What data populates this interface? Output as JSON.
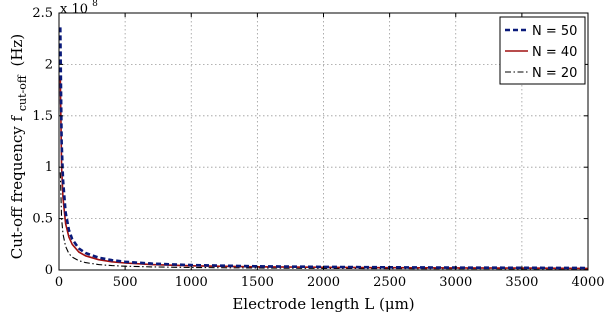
{
  "chart_data": {
    "type": "line",
    "title": "",
    "xlabel": "Electrode length L (μm)",
    "ylabel_main": "Cut-off frequency f",
    "ylabel_sub": "cut-off",
    "ylabel_unit": "(Hz)",
    "y_multiplier_base": "x 10",
    "y_multiplier_exp": "8",
    "xlim": [
      0,
      4000
    ],
    "ylim": [
      0,
      2.5
    ],
    "xticks": [
      0,
      500,
      1000,
      1500,
      2000,
      2500,
      3000,
      3500,
      4000
    ],
    "xtick_labels": [
      "0",
      "500",
      "1000",
      "1500",
      "2000",
      "2500",
      "3000",
      "3500",
      "4000"
    ],
    "yticks": [
      0,
      0.5,
      1,
      1.5,
      2,
      2.5
    ],
    "ytick_labels": [
      "0",
      "0.5",
      "1",
      "1.5",
      "2",
      "2.5"
    ],
    "grid": true,
    "legend_position": "top-right",
    "series": [
      {
        "name": "N = 50",
        "color": "#0a1a7a",
        "style": "dashed",
        "x": [
          10,
          20,
          30,
          50,
          75,
          100,
          150,
          200,
          300,
          400,
          500,
          700,
          1000,
          1500,
          2000,
          2500,
          3000,
          3500,
          4000
        ],
        "y": [
          2.36,
          1.25,
          0.88,
          0.56,
          0.39,
          0.3,
          0.21,
          0.165,
          0.12,
          0.095,
          0.08,
          0.062,
          0.048,
          0.036,
          0.03,
          0.026,
          0.023,
          0.021,
          0.019
        ]
      },
      {
        "name": "N = 40",
        "color": "#a01010",
        "style": "solid",
        "x": [
          10,
          20,
          30,
          50,
          75,
          100,
          150,
          200,
          300,
          400,
          500,
          700,
          1000,
          1500,
          2000,
          2500,
          3000,
          3500,
          4000
        ],
        "y": [
          1.88,
          1.0,
          0.7,
          0.45,
          0.32,
          0.25,
          0.175,
          0.138,
          0.1,
          0.08,
          0.068,
          0.053,
          0.041,
          0.031,
          0.026,
          0.022,
          0.02,
          0.018,
          0.016
        ]
      },
      {
        "name": "N = 20",
        "color": "#000000",
        "style": "dashdot",
        "x": [
          10,
          20,
          30,
          50,
          75,
          100,
          150,
          200,
          300,
          400,
          500,
          700,
          1000,
          1500,
          2000,
          2500,
          3000,
          3500,
          4000
        ],
        "y": [
          0.95,
          0.5,
          0.35,
          0.23,
          0.16,
          0.125,
          0.09,
          0.072,
          0.053,
          0.043,
          0.037,
          0.03,
          0.024,
          0.019,
          0.016,
          0.014,
          0.013,
          0.012,
          0.011
        ]
      }
    ]
  }
}
